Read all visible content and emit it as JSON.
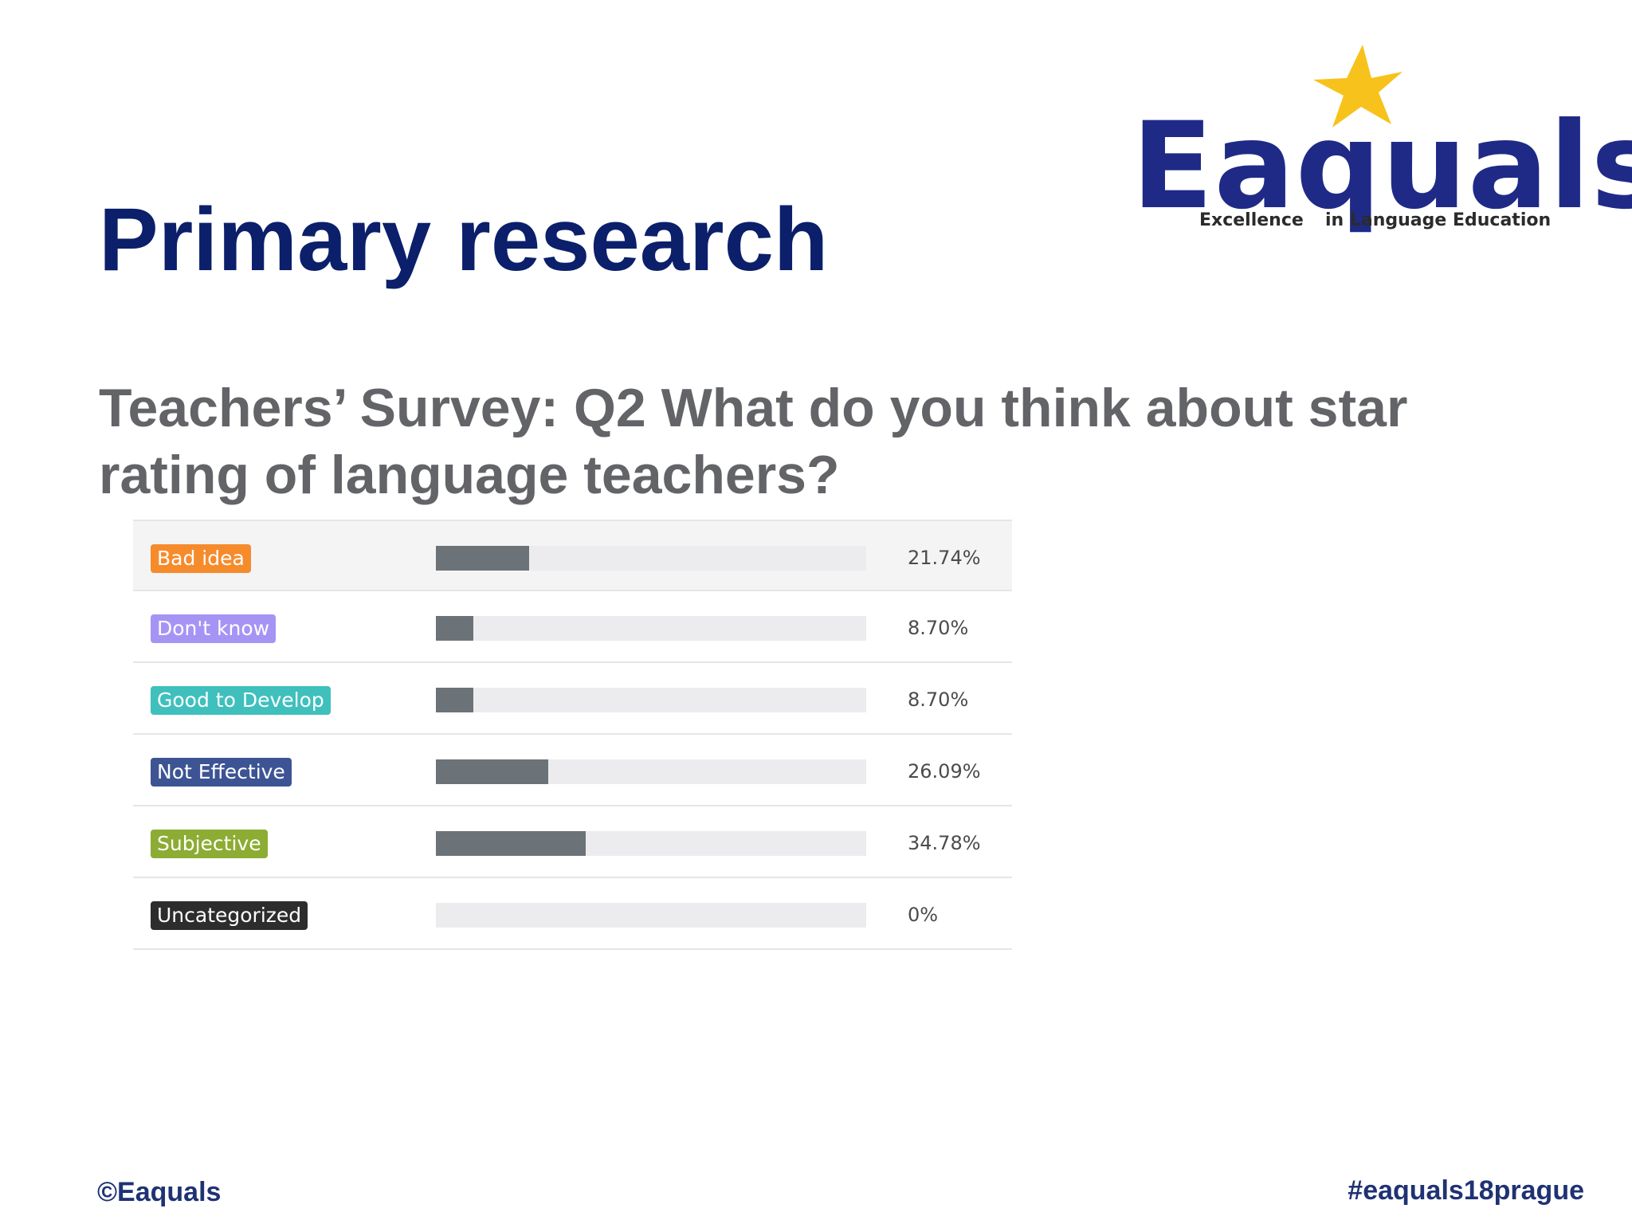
{
  "slide": {
    "title": "Primary research",
    "subtitle": "Teachers’ Survey: Q2 What do you think about star rating of language teachers?",
    "footer_left": "©Eaquals",
    "footer_right": "#eaquals18prague"
  },
  "logo": {
    "word": "Eaquals",
    "tagline_left": "Excellence",
    "tagline_right": "in Language Education",
    "brand_color": "#1f2a87",
    "star_color": "#f7c21b"
  },
  "chart_data": {
    "type": "bar",
    "orientation": "horizontal",
    "categories": [
      "Bad idea",
      "Don't know",
      "Good to Develop",
      "Not Effective",
      "Subjective",
      "Uncategorized"
    ],
    "values": [
      21.74,
      8.7,
      8.7,
      26.09,
      34.78,
      0
    ],
    "labels": [
      "21.74%",
      "8.70%",
      "8.70%",
      "26.09%",
      "34.78%",
      "0%"
    ],
    "xlim": [
      0,
      100
    ],
    "unit": "%",
    "category_colors": [
      "#f68b2c",
      "#a694f5",
      "#3fc0bd",
      "#3d5494",
      "#8cac33",
      "#2d2d2d"
    ],
    "bar_color": "#6c7378",
    "track_color": "#ececee"
  }
}
